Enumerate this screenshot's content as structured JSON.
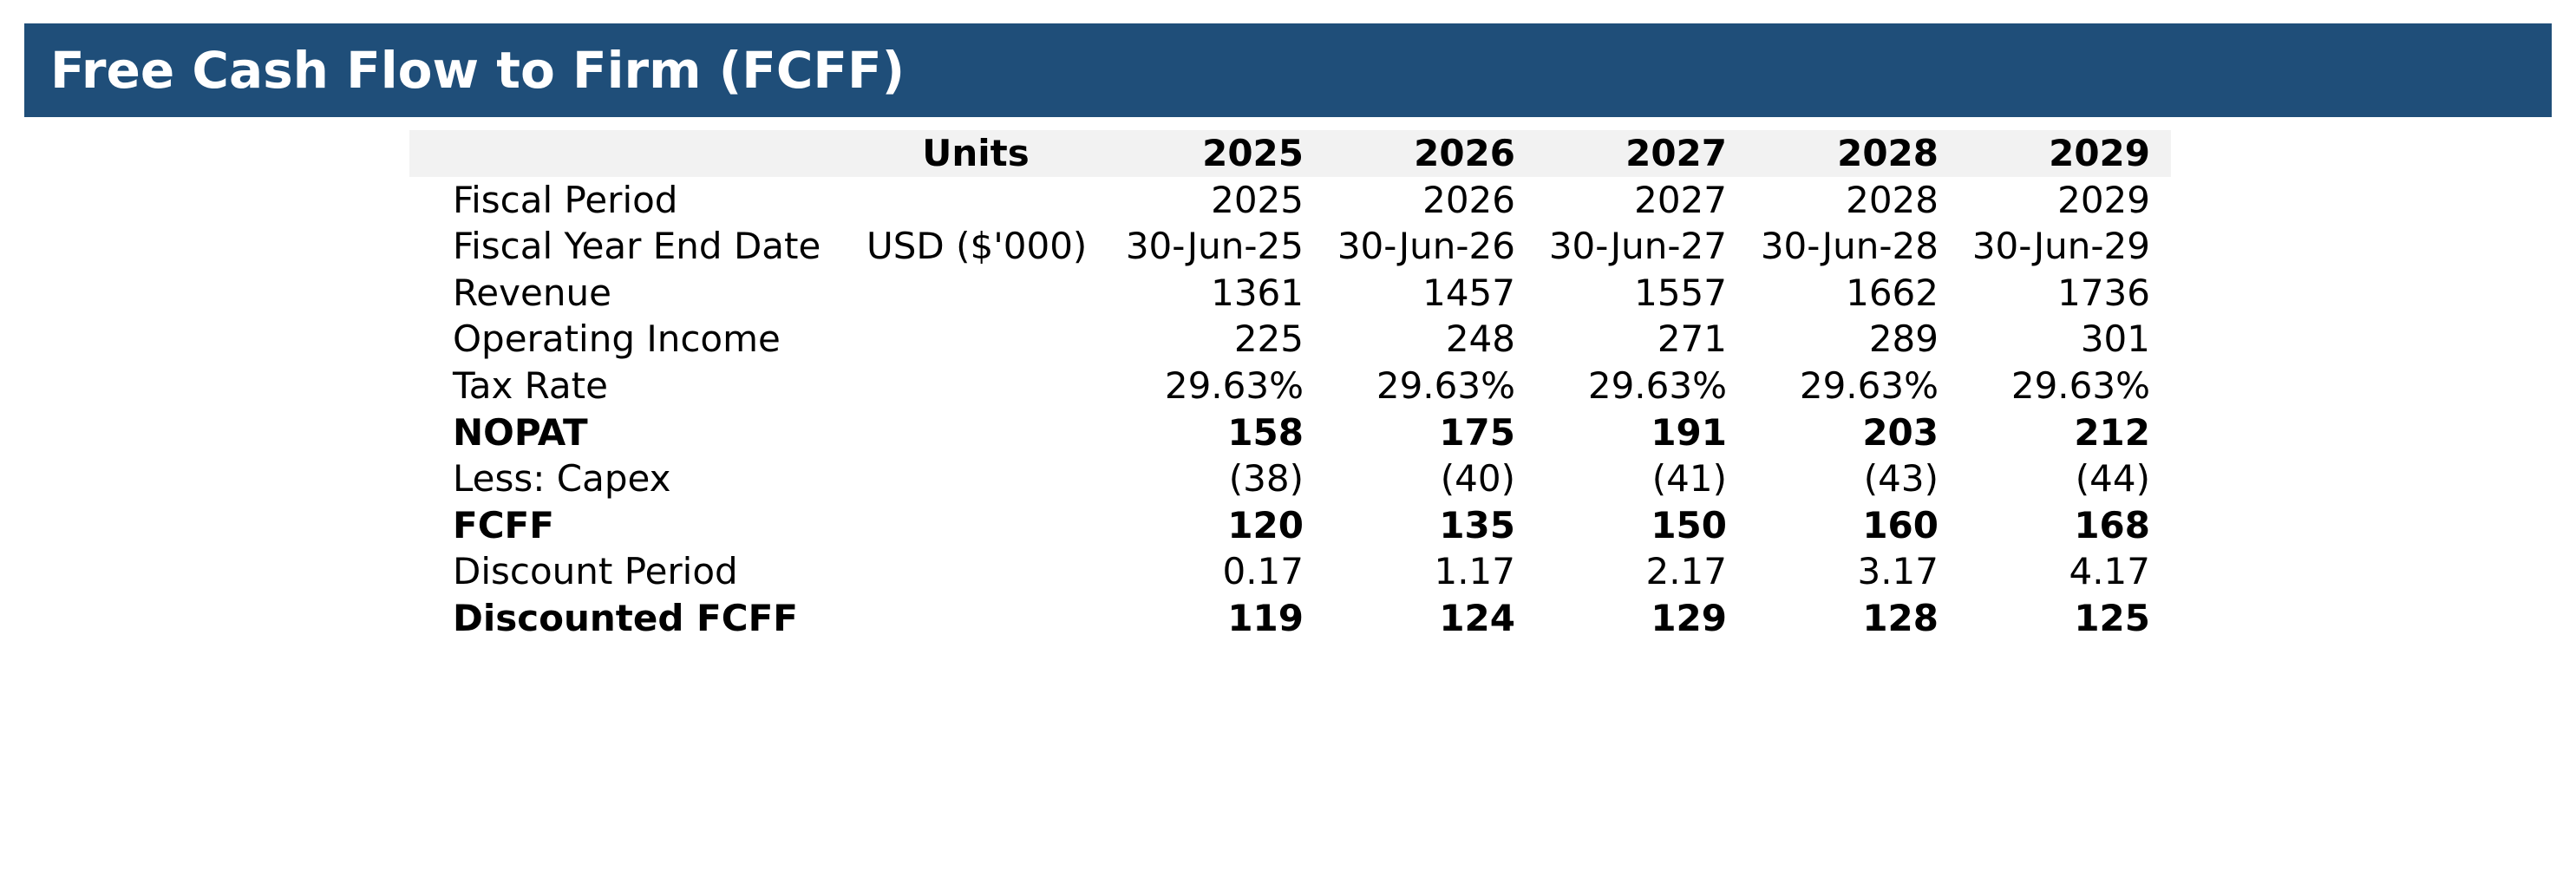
{
  "header": {
    "title": "Free Cash Flow to Firm (FCFF)"
  },
  "table": {
    "header": {
      "label": "",
      "units": "Units",
      "years": [
        "2025",
        "2026",
        "2027",
        "2028",
        "2029"
      ]
    },
    "rows": [
      {
        "label": "Fiscal Period",
        "units": "",
        "bold": false,
        "values": [
          "2025",
          "2026",
          "2027",
          "2028",
          "2029"
        ]
      },
      {
        "label": "Fiscal Year End Date",
        "units": "USD ($'000)",
        "bold": false,
        "values": [
          "30-Jun-25",
          "30-Jun-26",
          "30-Jun-27",
          "30-Jun-28",
          "30-Jun-29"
        ]
      },
      {
        "label": "Revenue",
        "units": "",
        "bold": false,
        "values": [
          "1361",
          "1457",
          "1557",
          "1662",
          "1736"
        ]
      },
      {
        "label": "Operating Income",
        "units": "",
        "bold": false,
        "values": [
          "225",
          "248",
          "271",
          "289",
          "301"
        ]
      },
      {
        "label": "Tax Rate",
        "units": "",
        "bold": false,
        "values": [
          "29.63%",
          "29.63%",
          "29.63%",
          "29.63%",
          "29.63%"
        ]
      },
      {
        "label": "NOPAT",
        "units": "",
        "bold": true,
        "values": [
          "158",
          "175",
          "191",
          "203",
          "212"
        ]
      },
      {
        "label": "Less: Capex",
        "units": "",
        "bold": false,
        "values": [
          "(38)",
          "(40)",
          "(41)",
          "(43)",
          "(44)"
        ]
      },
      {
        "label": "FCFF",
        "units": "",
        "bold": true,
        "values": [
          "120",
          "135",
          "150",
          "160",
          "168"
        ]
      },
      {
        "label": "Discount Period",
        "units": "",
        "bold": false,
        "values": [
          "0.17",
          "1.17",
          "2.17",
          "3.17",
          "4.17"
        ]
      },
      {
        "label": "Discounted FCFF",
        "units": "",
        "bold": true,
        "values": [
          "119",
          "124",
          "129",
          "128",
          "125"
        ]
      }
    ]
  },
  "colors": {
    "title_background": "#1f4e79",
    "title_text": "#ffffff",
    "header_row_background": "#f2f2f2"
  }
}
